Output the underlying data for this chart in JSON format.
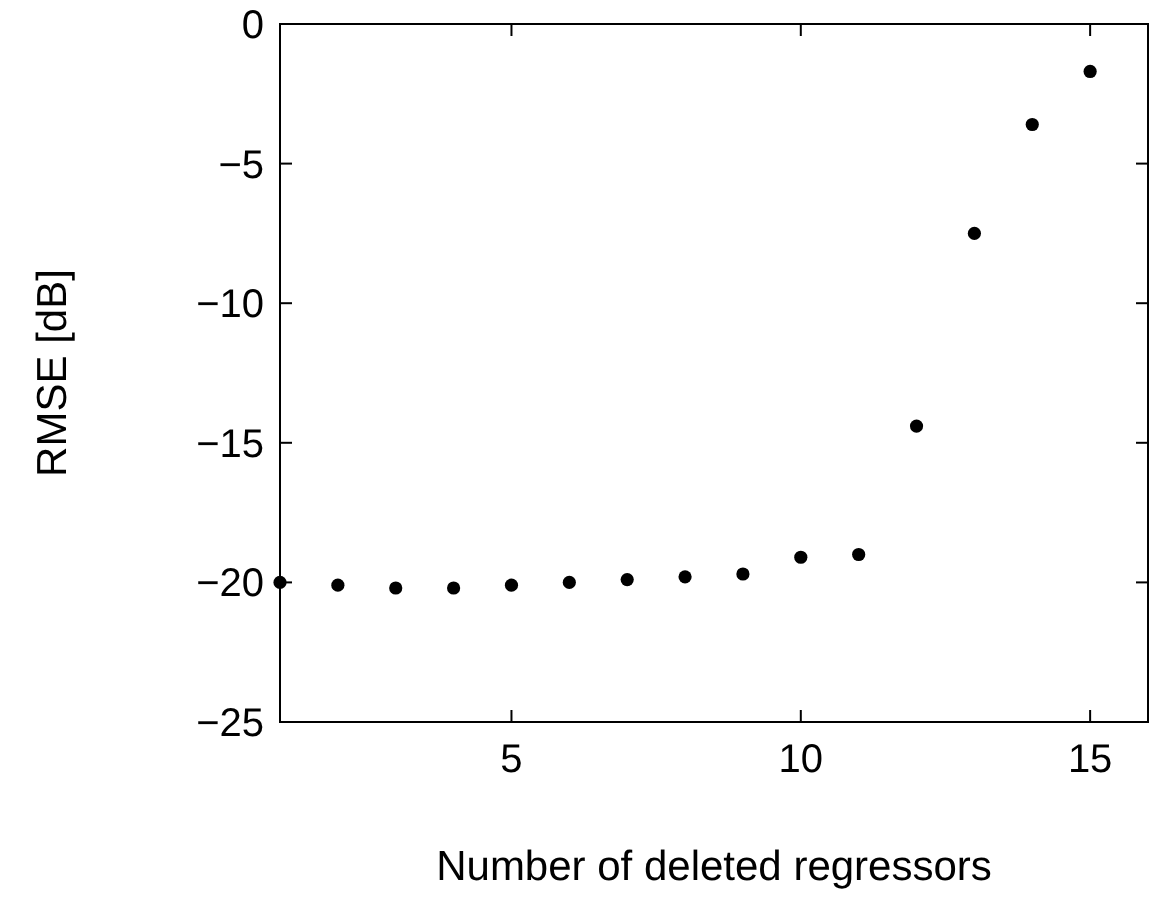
{
  "chart_data": {
    "type": "scatter",
    "xlabel": "Number of deleted regressors",
    "ylabel": "RMSE [dB]",
    "x": [
      1,
      2,
      3,
      4,
      5,
      6,
      7,
      8,
      9,
      10,
      11,
      12,
      13,
      14,
      15
    ],
    "values": [
      -20.0,
      -20.1,
      -20.2,
      -20.2,
      -20.1,
      -20.0,
      -19.9,
      -19.8,
      -19.7,
      -19.1,
      -19.0,
      -14.4,
      -7.5,
      -3.6,
      -1.7
    ],
    "color": "#000000",
    "marker": "circle",
    "xlim": [
      1,
      16
    ],
    "xticks": [
      5,
      10,
      15
    ],
    "ylim": [
      -25,
      0
    ],
    "yticks": [
      {
        "value": -25,
        "label": "−25"
      },
      {
        "value": -20,
        "label": "−20"
      },
      {
        "value": -15,
        "label": "−15"
      },
      {
        "value": -10,
        "label": "−10"
      },
      {
        "value": -5,
        "label": "−5"
      },
      0
    ],
    "grid": false
  }
}
